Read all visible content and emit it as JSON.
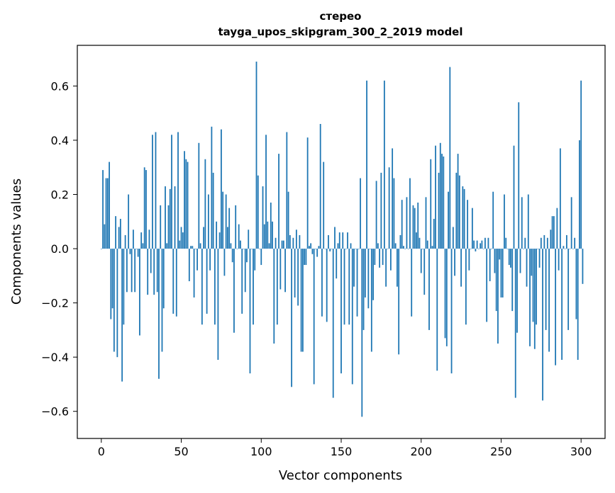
{
  "chart_data": {
    "type": "bar",
    "title": "стерео",
    "subtitle": "tayga_upos_skipgram_300_2_2019 model",
    "xlabel": "Vector components",
    "ylabel": "Components values",
    "xlim": [
      -15,
      315
    ],
    "ylim": [
      -0.7,
      0.75
    ],
    "xticks": [
      0,
      50,
      100,
      150,
      200,
      250,
      300
    ],
    "xtick_labels": [
      "0",
      "50",
      "100",
      "150",
      "200",
      "250",
      "300"
    ],
    "yticks": [
      -0.6,
      -0.4,
      -0.2,
      0.0,
      0.2,
      0.4,
      0.6
    ],
    "ytick_labels": [
      "−0.6",
      "−0.4",
      "−0.2",
      "0.0",
      "0.2",
      "0.4",
      "0.6"
    ],
    "grid": false,
    "bar_color": "#1f77b4",
    "values": [
      0.0,
      0.29,
      0.09,
      0.26,
      0.26,
      0.32,
      -0.26,
      -0.22,
      -0.38,
      0.12,
      -0.4,
      0.08,
      0.11,
      -0.49,
      -0.28,
      0.05,
      -0.16,
      0.2,
      -0.02,
      -0.16,
      0.07,
      -0.16,
      0.0,
      -0.03,
      -0.32,
      0.06,
      0.02,
      0.3,
      0.29,
      -0.17,
      0.07,
      -0.09,
      0.42,
      -0.17,
      0.43,
      -0.16,
      -0.48,
      0.16,
      -0.38,
      -0.22,
      0.23,
      0.02,
      0.16,
      0.22,
      0.42,
      -0.24,
      0.23,
      -0.25,
      0.43,
      0.03,
      0.08,
      0.06,
      0.36,
      0.33,
      0.32,
      -0.12,
      0.01,
      0.01,
      -0.18,
      0.0,
      -0.08,
      0.39,
      0.02,
      -0.28,
      0.08,
      0.33,
      -0.24,
      0.2,
      -0.08,
      0.45,
      0.28,
      -0.28,
      0.1,
      -0.41,
      0.06,
      0.44,
      0.21,
      -0.1,
      0.2,
      0.08,
      0.15,
      0.02,
      -0.05,
      -0.31,
      0.16,
      0.0,
      0.09,
      0.03,
      -0.24,
      0.0,
      -0.16,
      -0.05,
      0.07,
      -0.46,
      0.0,
      -0.28,
      -0.08,
      0.69,
      0.27,
      0.0,
      -0.06,
      0.23,
      0.09,
      0.42,
      0.1,
      0.02,
      0.17,
      0.1,
      -0.35,
      0.04,
      -0.28,
      0.35,
      -0.15,
      0.03,
      0.03,
      -0.16,
      0.43,
      0.21,
      0.05,
      -0.51,
      0.04,
      -0.18,
      0.07,
      -0.21,
      0.05,
      -0.38,
      -0.38,
      -0.06,
      -0.06,
      0.41,
      0.01,
      0.02,
      -0.02,
      -0.5,
      0.0,
      -0.03,
      0.01,
      0.46,
      -0.25,
      0.32,
      0.0,
      -0.27,
      0.05,
      -0.01,
      0.0,
      -0.55,
      0.08,
      -0.11,
      0.02,
      0.06,
      -0.46,
      0.06,
      -0.28,
      0.0,
      0.06,
      -0.28,
      0.02,
      -0.5,
      -0.14,
      0.0,
      -0.25,
      0.0,
      0.26,
      -0.62,
      -0.3,
      -0.18,
      0.62,
      -0.22,
      0.0,
      -0.38,
      -0.19,
      -0.06,
      0.25,
      0.02,
      -0.07,
      0.28,
      -0.06,
      0.62,
      -0.14,
      0.0,
      0.3,
      -0.08,
      0.37,
      0.26,
      0.02,
      -0.14,
      -0.39,
      0.05,
      0.18,
      0.01,
      0.0,
      0.19,
      0.0,
      0.26,
      -0.25,
      0.16,
      0.15,
      0.06,
      0.17,
      0.04,
      -0.09,
      0.0,
      -0.17,
      0.19,
      0.03,
      -0.3,
      0.33,
      0.01,
      0.11,
      0.38,
      -0.45,
      0.28,
      0.39,
      0.35,
      0.34,
      -0.33,
      -0.36,
      0.21,
      0.67,
      -0.46,
      0.08,
      -0.1,
      0.28,
      0.35,
      0.27,
      -0.14,
      0.23,
      0.22,
      -0.28,
      0.18,
      -0.08,
      0.0,
      0.15,
      0.03,
      -0.01,
      0.03,
      0.0,
      0.02,
      0.03,
      0.0,
      0.04,
      -0.27,
      0.04,
      -0.12,
      0.0,
      0.21,
      -0.09,
      -0.23,
      -0.35,
      -0.04,
      -0.18,
      -0.18,
      0.2,
      0.04,
      0.0,
      -0.06,
      -0.07,
      -0.23,
      0.38,
      -0.55,
      -0.31,
      0.54,
      -0.09,
      0.19,
      0.0,
      0.04,
      -0.14,
      0.2,
      -0.36,
      -0.1,
      -0.27,
      -0.37,
      -0.28,
      0.0,
      -0.07,
      0.04,
      -0.56,
      0.05,
      -0.3,
      0.04,
      -0.38,
      0.07,
      0.12,
      0.12,
      -0.43,
      0.15,
      -0.08,
      0.37,
      -0.41,
      0.01,
      0.0,
      0.05,
      -0.3,
      0.0,
      0.19,
      0.0,
      0.04,
      -0.26,
      -0.41,
      0.4,
      0.62,
      -0.13
    ]
  }
}
